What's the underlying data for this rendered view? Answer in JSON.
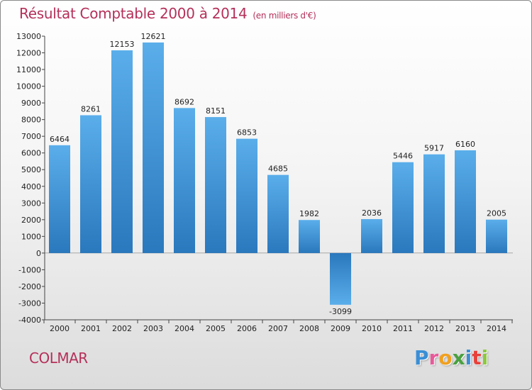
{
  "title": "Résultat Comptable 2000 à 2014",
  "subtitle": "(en milliers d'€)",
  "commune": "COLMAR",
  "logo": {
    "letters": [
      {
        "ch": "P",
        "color": "#3a8fd6"
      },
      {
        "ch": "r",
        "color": "#e85a9a"
      },
      {
        "ch": "o",
        "color": "#f0a020"
      },
      {
        "ch": "x",
        "color": "#4aa040"
      },
      {
        "ch": "i",
        "color": "#3a8fd6"
      },
      {
        "ch": "t",
        "color": "#e8403a"
      },
      {
        "ch": "i",
        "color": "#8cc83c"
      }
    ]
  },
  "chart_data": {
    "type": "bar",
    "categories": [
      "2000",
      "2001",
      "2002",
      "2003",
      "2004",
      "2005",
      "2006",
      "2007",
      "2008",
      "2009",
      "2010",
      "2011",
      "2012",
      "2013",
      "2014"
    ],
    "values": [
      6464,
      8261,
      12153,
      12621,
      8692,
      8151,
      6853,
      4685,
      1982,
      -3099,
      2036,
      5446,
      5917,
      6160,
      2005
    ],
    "ylim": [
      -4000,
      13000
    ],
    "yticks": [
      "13000",
      "12000",
      "11000",
      "10000",
      "9000",
      "8000",
      "7000",
      "6000",
      "5000",
      "4000",
      "3000",
      "2000",
      "1000",
      "0",
      "-1000",
      "-2000",
      "-3000",
      "-4000"
    ],
    "grid": false,
    "bar_color": "#3d94d8"
  }
}
